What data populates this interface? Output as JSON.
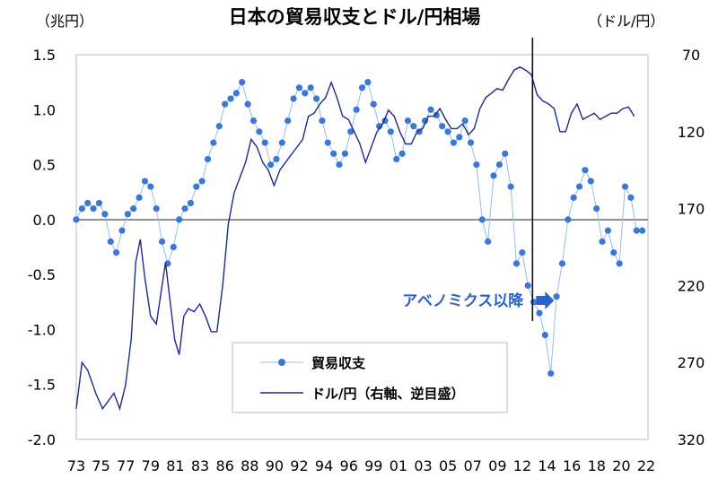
{
  "chart_data": {
    "type": "line+scatter",
    "title": "日本の貿易収支とドル/円相場",
    "left_unit": "（兆円）",
    "right_unit": "（ドル/円）",
    "left_axis": {
      "ticks": [
        1.5,
        1.0,
        0.5,
        0.0,
        -0.5,
        -1.0,
        -1.5,
        -2.0
      ],
      "tick_labels": [
        "1.5",
        "1.0",
        "0.5",
        "0.0",
        "-0.5",
        "-1.0",
        "-1.5",
        "-2.0"
      ],
      "ylim": [
        -2.0,
        1.5
      ]
    },
    "right_axis": {
      "inverted": true,
      "ticks": [
        70,
        120,
        170,
        220,
        270,
        320
      ],
      "tick_labels": [
        "70",
        "120",
        "170",
        "220",
        "270",
        "320"
      ],
      "ylim": [
        70,
        320
      ]
    },
    "x_axis": {
      "range": [
        1973,
        2023
      ],
      "tick_labels": [
        "73",
        "75",
        "77",
        "79",
        "81",
        "83",
        "86",
        "88",
        "90",
        "92",
        "94",
        "96",
        "99",
        "01",
        "03",
        "05",
        "07",
        "09",
        "12",
        "14",
        "16",
        "18",
        "20",
        "22"
      ]
    },
    "colors": {
      "trade": "#3a78d8",
      "trade_line": "#9bbbe6",
      "usdjpy": "#1f2a8c",
      "axis": "#222222",
      "annot": "#2a62c9"
    },
    "legend": [
      {
        "label": "貿易収支",
        "style": "markers"
      },
      {
        "label": "ドル/円（右軸、逆目盛）",
        "style": "line"
      }
    ],
    "annotation": {
      "text": "アベノミクス以降",
      "x": 2012.9
    },
    "series": [
      {
        "name": "貿易収支",
        "axis": "left",
        "unit": "兆円",
        "x": [
          1973,
          1973.5,
          1974,
          1974.5,
          1975,
          1975.5,
          1976,
          1976.5,
          1977,
          1977.5,
          1978,
          1978.5,
          1979,
          1979.5,
          1980,
          1980.5,
          1981,
          1981.5,
          1982,
          1982.5,
          1983,
          1983.5,
          1984,
          1984.5,
          1985,
          1985.5,
          1986,
          1986.5,
          1987,
          1987.5,
          1988,
          1988.5,
          1989,
          1989.5,
          1990,
          1990.5,
          1991,
          1991.5,
          1992,
          1992.5,
          1993,
          1993.5,
          1994,
          1994.5,
          1995,
          1995.5,
          1996,
          1996.5,
          1997,
          1997.5,
          1998,
          1998.5,
          1999,
          1999.5,
          2000,
          2000.5,
          2001,
          2001.5,
          2002,
          2002.5,
          2003,
          2003.5,
          2004,
          2004.5,
          2005,
          2005.5,
          2006,
          2006.5,
          2007,
          2007.5,
          2008,
          2008.5,
          2009,
          2009.5,
          2010,
          2010.5,
          2011,
          2011.5,
          2012,
          2012.5,
          2013,
          2013.5,
          2014,
          2014.5,
          2015,
          2015.5,
          2016,
          2016.5,
          2017,
          2017.5,
          2018,
          2018.5,
          2019,
          2019.5,
          2020,
          2020.5,
          2021,
          2021.5,
          2022,
          2022.5
        ],
        "values": [
          0.0,
          0.1,
          0.15,
          0.1,
          0.15,
          0.05,
          -0.2,
          -0.3,
          -0.1,
          0.05,
          0.1,
          0.2,
          0.35,
          0.3,
          0.1,
          -0.2,
          -0.4,
          -0.25,
          0.0,
          0.1,
          0.15,
          0.3,
          0.35,
          0.55,
          0.7,
          0.85,
          1.05,
          1.1,
          1.15,
          1.25,
          1.05,
          0.9,
          0.8,
          0.7,
          0.5,
          0.55,
          0.7,
          0.9,
          1.1,
          1.2,
          1.15,
          1.2,
          1.1,
          0.9,
          0.7,
          0.6,
          0.5,
          0.6,
          0.8,
          1.0,
          1.2,
          1.25,
          1.05,
          0.85,
          0.9,
          0.8,
          0.55,
          0.6,
          0.9,
          0.85,
          0.8,
          0.9,
          1.0,
          0.95,
          0.85,
          0.8,
          0.7,
          0.75,
          0.9,
          0.7,
          0.5,
          0.0,
          -0.2,
          0.4,
          0.5,
          0.6,
          0.3,
          -0.4,
          -0.3,
          -0.6,
          -0.75,
          -0.85,
          -1.05,
          -1.4,
          -0.7,
          -0.4,
          0.0,
          0.2,
          0.3,
          0.45,
          0.35,
          0.1,
          -0.2,
          -0.1,
          -0.3,
          -0.4,
          0.3,
          0.2,
          -0.1,
          -0.1
        ]
      },
      {
        "name": "ドル/円",
        "axis": "right",
        "unit": "円",
        "x": [
          1973,
          1973.5,
          1974,
          1974.7,
          1975.3,
          1975.8,
          1976.3,
          1976.8,
          1977.3,
          1977.8,
          1978.2,
          1978.6,
          1979.0,
          1979.5,
          1980.0,
          1980.4,
          1980.8,
          1981.2,
          1981.6,
          1982.0,
          1982.4,
          1982.8,
          1983.3,
          1983.8,
          1984.3,
          1984.8,
          1985.3,
          1985.8,
          1986.3,
          1986.8,
          1987.3,
          1987.8,
          1988.3,
          1988.8,
          1989.3,
          1989.8,
          1990.3,
          1990.8,
          1991.3,
          1991.8,
          1992.3,
          1992.8,
          1993.3,
          1993.8,
          1994.3,
          1994.8,
          1995.3,
          1995.8,
          1996.3,
          1996.8,
          1997.3,
          1997.8,
          1998.3,
          1998.8,
          1999.3,
          1999.8,
          2000.3,
          2000.8,
          2001.3,
          2001.8,
          2002.3,
          2002.8,
          2003.3,
          2003.8,
          2004.3,
          2004.8,
          2005.3,
          2005.8,
          2006.3,
          2006.8,
          2007.3,
          2007.8,
          2008.3,
          2008.8,
          2009.3,
          2009.8,
          2010.3,
          2010.8,
          2011.3,
          2011.8,
          2012.3,
          2012.8,
          2013.3,
          2013.8,
          2014.3,
          2014.8,
          2015.3,
          2015.8,
          2016.3,
          2016.8,
          2017.3,
          2017.8,
          2018.3,
          2018.8,
          2019.3,
          2019.8,
          2020.3,
          2020.8,
          2021.3,
          2021.8
        ],
        "values": [
          300,
          270,
          275,
          290,
          300,
          295,
          290,
          300,
          285,
          255,
          205,
          190,
          215,
          240,
          245,
          225,
          205,
          230,
          255,
          265,
          240,
          235,
          237,
          232,
          240,
          250,
          250,
          220,
          180,
          160,
          150,
          140,
          125,
          130,
          140,
          145,
          155,
          145,
          140,
          135,
          130,
          125,
          110,
          108,
          102,
          98,
          88,
          98,
          110,
          112,
          120,
          128,
          140,
          130,
          120,
          115,
          106,
          110,
          120,
          128,
          128,
          120,
          118,
          110,
          110,
          105,
          112,
          118,
          118,
          115,
          122,
          118,
          105,
          98,
          95,
          92,
          93,
          86,
          80,
          78,
          80,
          83,
          96,
          100,
          102,
          105,
          120,
          120,
          108,
          102,
          112,
          110,
          108,
          112,
          110,
          108,
          108,
          105,
          104,
          110
        ]
      }
    ]
  }
}
